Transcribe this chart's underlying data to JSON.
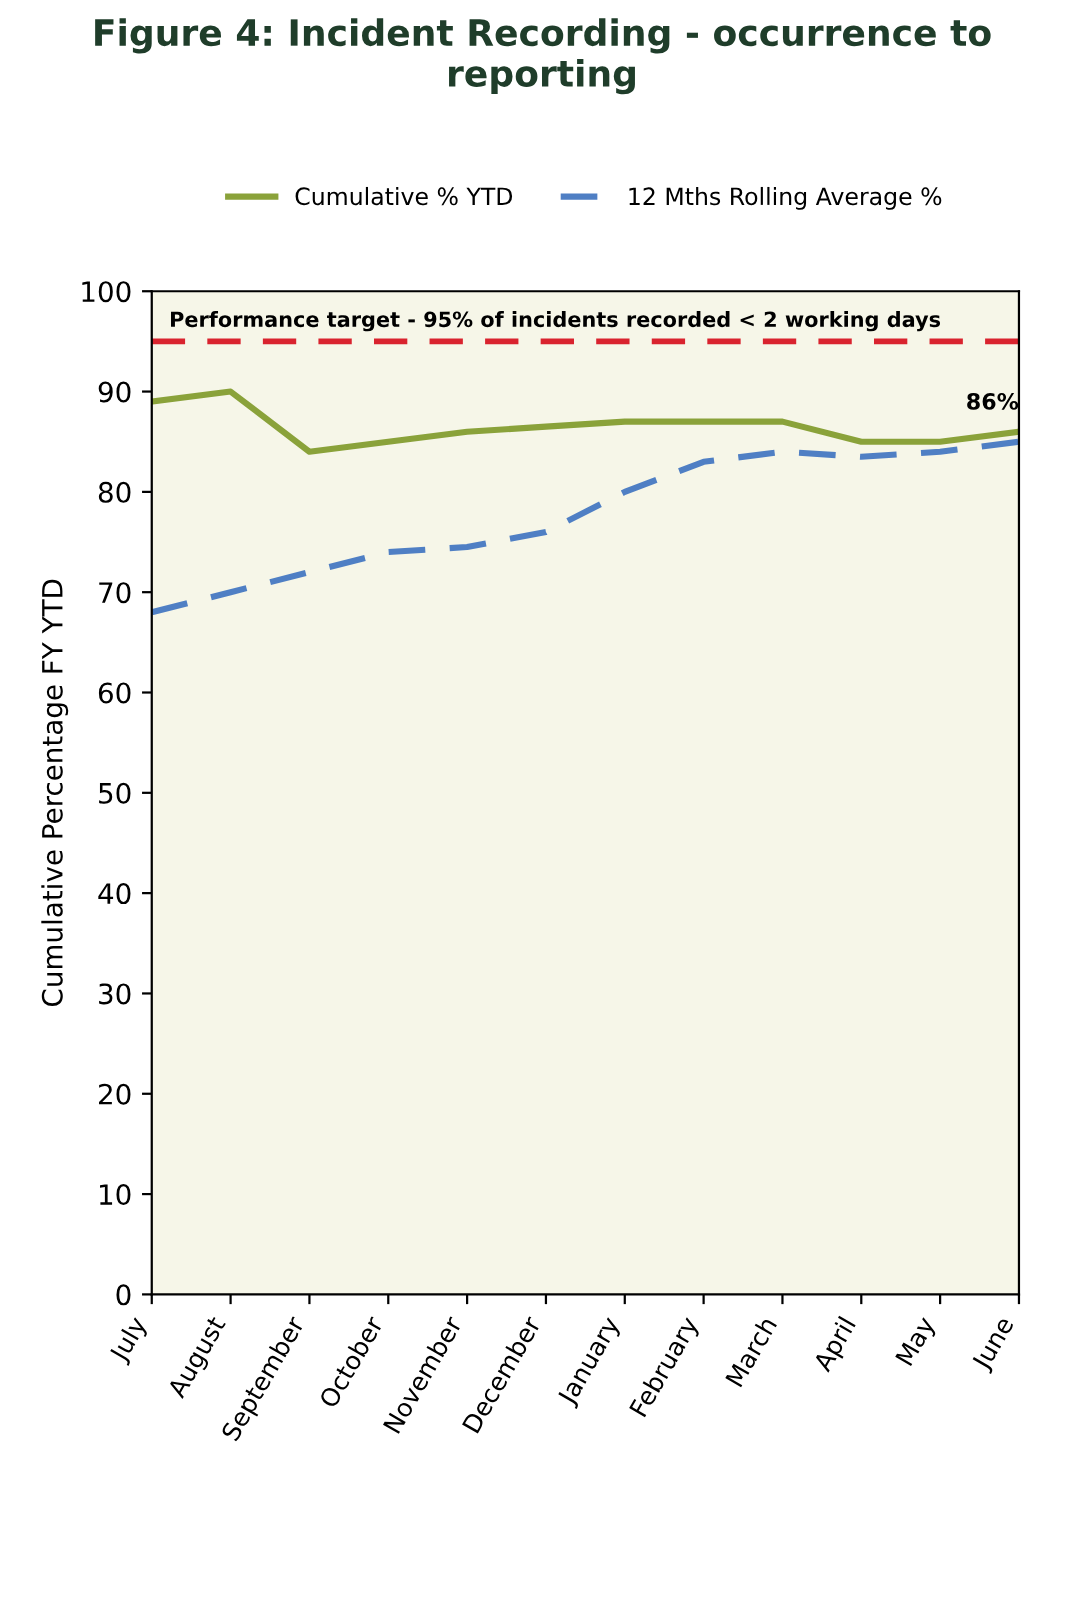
{
  "chart_data": {
    "type": "line",
    "title": "Figure 4: Incident Recording - occurrence to reporting",
    "ylabel": "Cumulative Percentage FY YTD",
    "categories": [
      "July",
      "August",
      "September",
      "October",
      "November",
      "December",
      "January",
      "February",
      "March",
      "April",
      "May",
      "June"
    ],
    "series": [
      {
        "name": "Cumulative % YTD",
        "color": "#8aa23a",
        "line_style": "solid",
        "values": [
          89,
          90,
          84,
          85,
          86,
          86.5,
          87,
          87,
          87,
          85,
          85,
          86
        ]
      },
      {
        "name": "12 Mths Rolling Average %",
        "color": "#4f7fc4",
        "line_style": "dashed",
        "values": [
          68,
          70,
          72,
          74,
          74.5,
          76,
          80,
          83,
          84,
          83.5,
          84,
          85
        ]
      }
    ],
    "ylim": [
      0,
      100
    ],
    "yticks": [
      0,
      10,
      20,
      30,
      40,
      50,
      60,
      70,
      80,
      90,
      100
    ],
    "ref_lines": [
      {
        "axis": "y",
        "value": 95,
        "label": "Performance target - 95% of incidents recorded < 2 working days",
        "color": "#d9232e",
        "line_style": "dashed"
      }
    ],
    "annotations": [
      {
        "text": "86%",
        "x": "June",
        "y": 86
      }
    ],
    "legend": "top",
    "grid": false,
    "marker": "none"
  }
}
